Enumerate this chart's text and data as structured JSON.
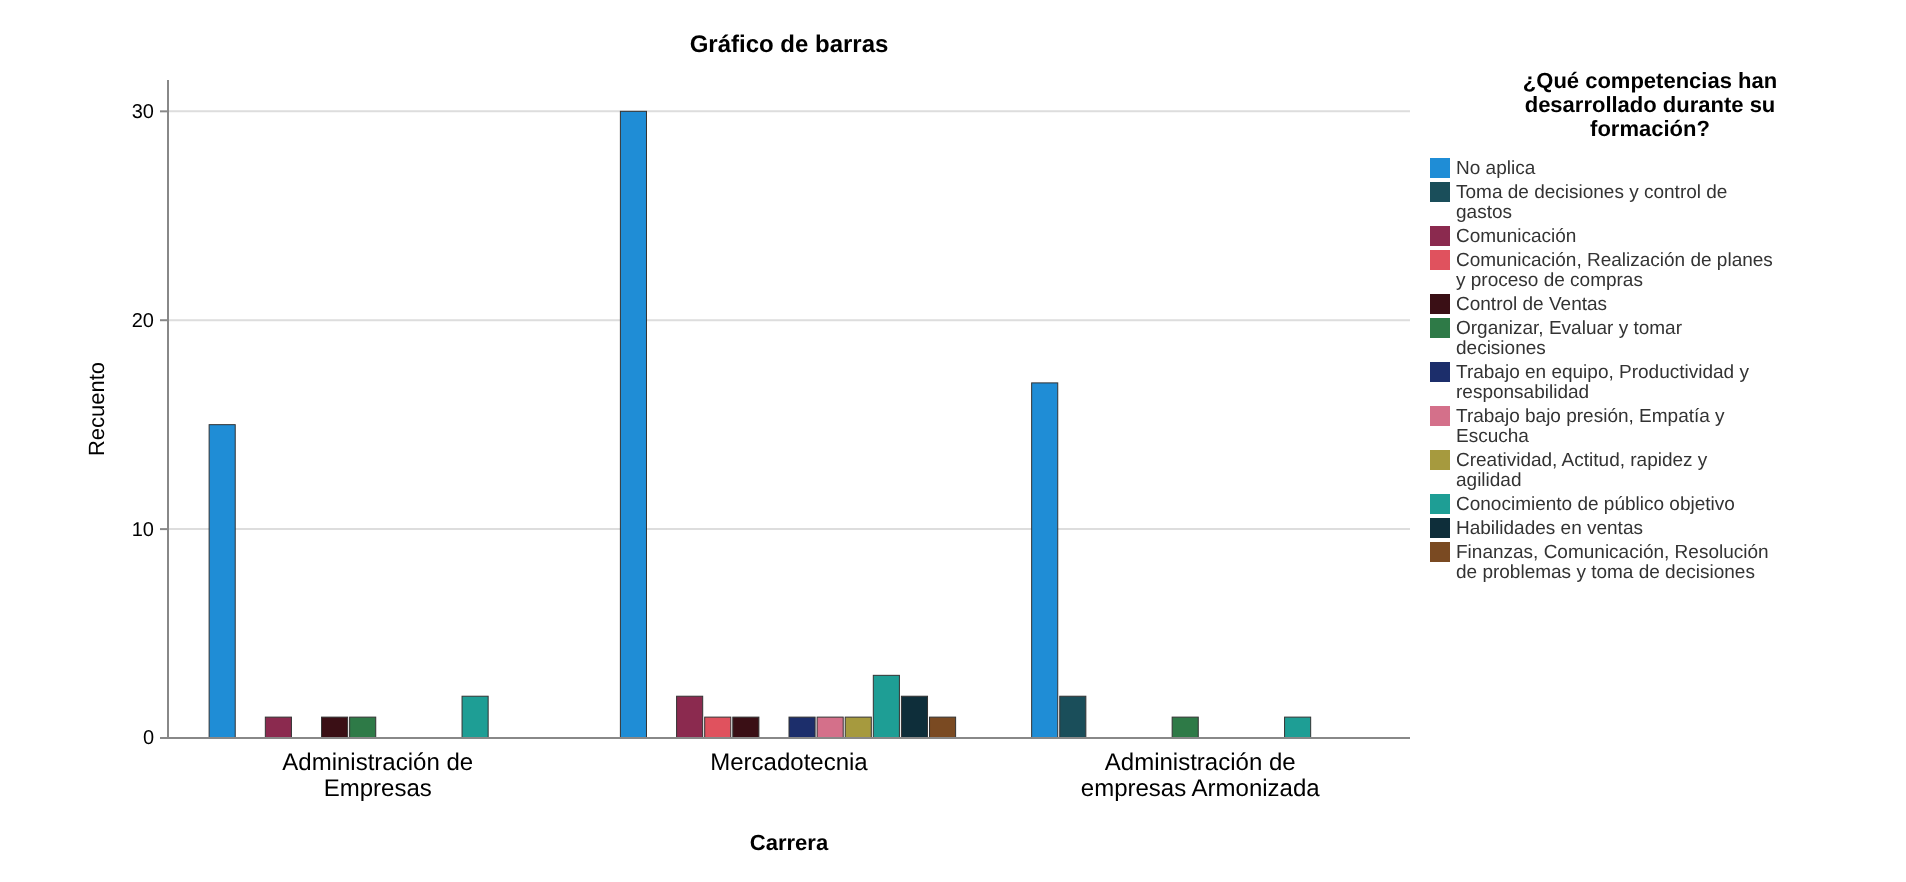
{
  "chart_data": {
    "type": "bar",
    "title": "Gráfico de barras",
    "xlabel": "Carrera",
    "ylabel": "Recuento",
    "legend_title": "¿Qué competencias han desarrollado durante su formación?",
    "categories": [
      "Administración de Empresas",
      "Mercadotecnia",
      "Administración de empresas Armonizada"
    ],
    "series": [
      {
        "name": "No aplica",
        "color": "#1f8dd6",
        "values": [
          15,
          30,
          17
        ]
      },
      {
        "name": "Toma de decisiones y control de gastos",
        "color": "#1a4e5a",
        "values": [
          0,
          0,
          2
        ]
      },
      {
        "name": "Comunicación",
        "color": "#8b2a4f",
        "values": [
          1,
          2,
          0
        ]
      },
      {
        "name": "Comunicación, Realización de planes y proceso de compras",
        "color": "#e0525e",
        "values": [
          0,
          1,
          0
        ]
      },
      {
        "name": "Control de Ventas",
        "color": "#3a0f15",
        "values": [
          1,
          1,
          0
        ]
      },
      {
        "name": "Organizar, Evaluar y tomar decisiones",
        "color": "#2e7a47",
        "values": [
          1,
          0,
          1
        ]
      },
      {
        "name": "Trabajo en equipo, Productividad y responsabilidad",
        "color": "#1c2e6b",
        "values": [
          0,
          1,
          0
        ]
      },
      {
        "name": "Trabajo bajo presión, Empatía y Escucha",
        "color": "#d4708a",
        "values": [
          0,
          1,
          0
        ]
      },
      {
        "name": "Creatividad, Actitud, rapidez y agilidad",
        "color": "#a69a3e",
        "values": [
          0,
          1,
          0
        ]
      },
      {
        "name": "Conocimiento de público objetivo",
        "color": "#1e9e95",
        "values": [
          2,
          3,
          1
        ]
      },
      {
        "name": "Habilidades en ventas",
        "color": "#0e2e3a",
        "values": [
          0,
          2,
          0
        ]
      },
      {
        "name": "Finanzas, Comunicación, Resolución de problemas y toma de decisiones",
        "color": "#7a4a22",
        "values": [
          0,
          1,
          0
        ]
      }
    ],
    "ylim": [
      0,
      31.5
    ],
    "yticks": [
      0,
      10,
      20,
      30
    ],
    "grid": "y",
    "legend": "right"
  }
}
